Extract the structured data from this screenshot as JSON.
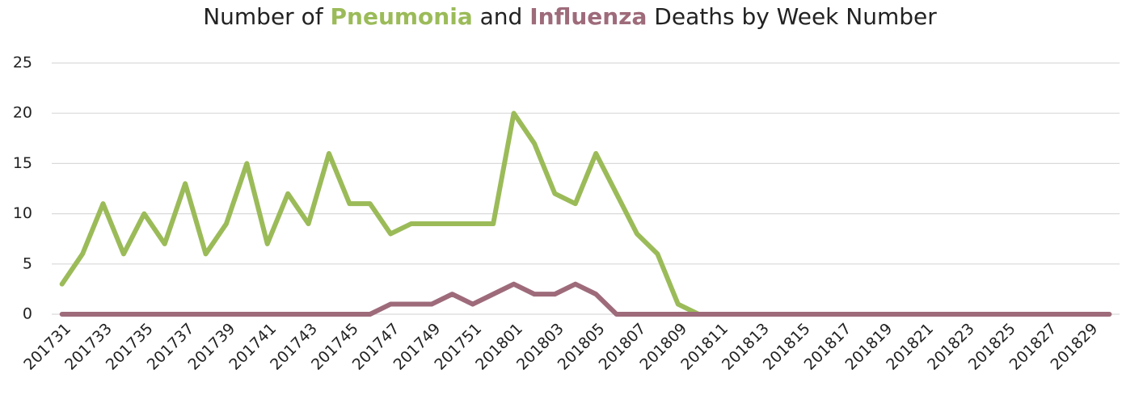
{
  "chart_data": {
    "type": "line",
    "title_prefix": "Number of",
    "title_middle": "and",
    "title_suffix": "Deaths by Week Number",
    "categories": [
      "201731",
      null,
      "201733",
      null,
      "201735",
      null,
      "201737",
      null,
      "201739",
      null,
      "201741",
      null,
      "201743",
      null,
      "201745",
      null,
      "201747",
      null,
      "201749",
      null,
      "201751",
      null,
      "201801",
      null,
      "201803",
      null,
      "201805",
      null,
      "201807",
      null,
      "201809",
      null,
      "201811",
      null,
      "201813",
      null,
      "201815",
      null,
      "201817",
      null,
      "201819",
      null,
      "201821",
      null,
      "201823",
      null,
      "201825",
      null,
      "201827",
      null,
      "201829",
      null
    ],
    "series": [
      {
        "name": "Pneumonia",
        "color": "#9bbb59",
        "values": [
          3,
          6,
          11,
          6,
          10,
          7,
          13,
          6,
          9,
          15,
          7,
          12,
          9,
          16,
          11,
          11,
          8,
          9,
          9,
          9,
          9,
          9,
          20,
          17,
          12,
          11,
          16,
          12,
          8,
          6,
          1,
          0,
          0,
          0,
          0,
          0,
          0,
          0,
          0,
          0,
          0,
          0,
          0,
          0,
          0,
          0,
          0,
          0,
          0,
          0,
          0,
          0
        ]
      },
      {
        "name": "Influenza",
        "color": "#9e6b7b",
        "values": [
          0,
          0,
          0,
          0,
          0,
          0,
          0,
          0,
          0,
          0,
          0,
          0,
          0,
          0,
          0,
          0,
          1,
          1,
          1,
          2,
          1,
          2,
          3,
          2,
          2,
          3,
          2,
          0,
          0,
          0,
          0,
          0,
          0,
          0,
          0,
          0,
          0,
          0,
          0,
          0,
          0,
          0,
          0,
          0,
          0,
          0,
          0,
          0,
          0,
          0,
          0,
          0
        ]
      }
    ],
    "ylim": [
      0,
      25
    ],
    "yticks": [
      0,
      5,
      10,
      15,
      20,
      25
    ],
    "grid": true
  }
}
